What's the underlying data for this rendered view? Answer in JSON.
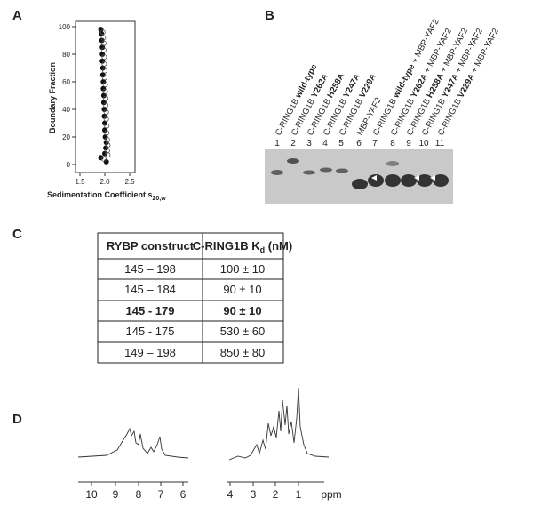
{
  "panels": {
    "A": {
      "letter": "A",
      "chart": {
        "type": "scatter",
        "ylabel": "Boundary Fraction",
        "xlabel": "Sedimentation Coefficient s",
        "xlabel_sub": "20,w",
        "xlim": [
          1.5,
          2.5
        ],
        "xticks": [
          1.5,
          {
            "value": 2,
            "label": "2.0"
          },
          2.5
        ],
        "ylim": [
          0,
          100
        ],
        "yticks": [
          0,
          20,
          40,
          60,
          80,
          100
        ],
        "series": [
          {
            "color": "#111",
            "marker": "filled",
            "x": [
              2.03,
              1.92,
              2.0,
              2.02,
              2.03,
              2.01,
              2.0,
              2.0,
              1.99,
              1.99,
              1.98,
              1.98,
              1.97,
              1.97,
              1.96,
              1.96,
              1.95,
              1.95,
              1.95,
              1.94,
              1.93,
              1.92
            ],
            "values": [
              2,
              5,
              8,
              12,
              16,
              20,
              25,
              30,
              35,
              40,
              45,
              50,
              55,
              60,
              65,
              70,
              75,
              80,
              85,
              90,
              95,
              98
            ]
          },
          {
            "color": "#555",
            "marker": "open",
            "x": [
              1.98,
              2.06,
              2.05,
              2.06,
              2.05,
              2.04,
              2.04,
              2.03,
              2.03,
              2.02,
              2.02,
              2.01,
              2.01,
              2.0,
              2.0,
              1.99,
              1.99,
              1.98,
              1.98,
              1.97,
              1.96
            ],
            "values": [
              4,
              7,
              10,
              14,
              18,
              23,
              28,
              33,
              38,
              43,
              48,
              53,
              58,
              63,
              68,
              73,
              78,
              83,
              88,
              92,
              96
            ]
          }
        ]
      }
    },
    "B": {
      "letter": "B",
      "lanes": [
        {
          "number": "1",
          "text": "C-RING1B ",
          "bold": "wild-type",
          "suffix": ""
        },
        {
          "number": "2",
          "text": "C-RING1B ",
          "bold": "Y262A",
          "suffix": ""
        },
        {
          "number": "3",
          "text": "C-RING1B ",
          "bold": "H258A",
          "suffix": ""
        },
        {
          "number": "4",
          "text": "C-RING1B ",
          "bold": "Y247A",
          "suffix": ""
        },
        {
          "number": "5",
          "text": "C-RING1B ",
          "bold": "V229A",
          "suffix": ""
        },
        {
          "number": "6",
          "text": "MBP-YAF2",
          "bold": "",
          "suffix": ""
        },
        {
          "number": "7",
          "text": "C-RING1B ",
          "bold": "wild-type",
          "suffix": " + MBP-YAF2"
        },
        {
          "number": "8",
          "text": "C-RING1B ",
          "bold": "Y262A",
          "suffix": " + MBP-YAF2"
        },
        {
          "number": "9",
          "text": "C-RING1B ",
          "bold": "H258A",
          "suffix": " + MBP-YAF2"
        },
        {
          "number": "10",
          "text": "C-RING1B ",
          "bold": "Y247A",
          "suffix": " + MBP-YAF2"
        },
        {
          "number": "11",
          "text": "C-RING1B ",
          "bold": "V229A",
          "suffix": " + MBP-YAF2"
        }
      ]
    },
    "C": {
      "letter": "C",
      "table": {
        "header": [
          "RYBP construct",
          "C-RING1B K",
          "d",
          " (nM)"
        ],
        "rows": [
          [
            "145 – 198",
            "100 ± 10"
          ],
          [
            "145 – 184",
            "90 ± 10"
          ],
          [
            "145 - 179",
            "90 ± 10"
          ],
          [
            "145 - 175",
            "530 ± 60"
          ],
          [
            "149 – 198",
            "850 ± 80"
          ]
        ]
      }
    },
    "D": {
      "letter": "D",
      "axis_left": [
        "10",
        "9",
        "8",
        "7",
        "6"
      ],
      "axis_right": [
        "4",
        "3",
        "2",
        "1"
      ],
      "unit": "ppm"
    }
  }
}
